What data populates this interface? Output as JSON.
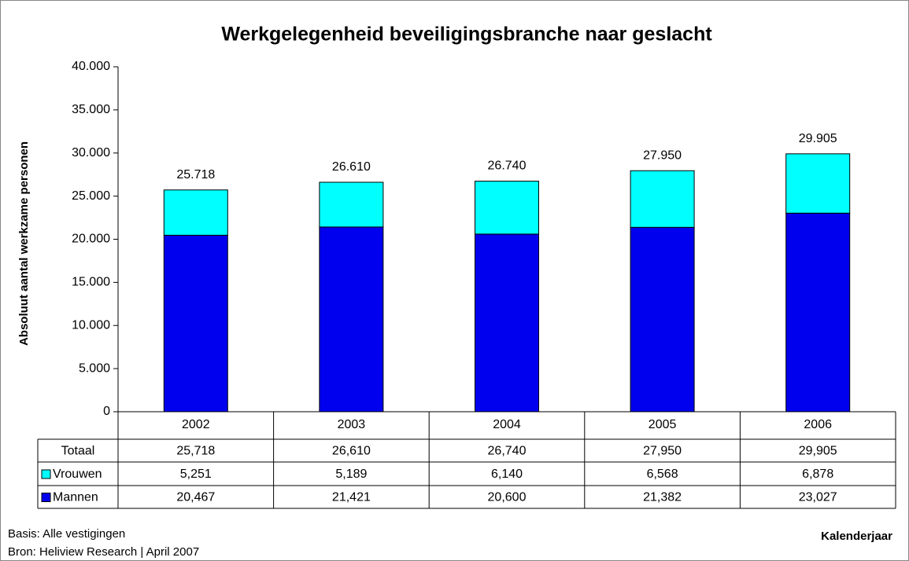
{
  "chart_data": {
    "type": "stacked_bar",
    "title": "Werkgelegenheid beveiligingsbranche naar geslacht",
    "y_label": "Absoluut aantal werkzame personen",
    "x_label": "Kalenderjaar",
    "notes": [
      "Basis: Alle vestigingen",
      "Bron: Heliview Research | April 2007"
    ],
    "categories": [
      "2002",
      "2003",
      "2004",
      "2005",
      "2006"
    ],
    "series": [
      {
        "name": "Mannen",
        "color": "#0000ee",
        "values": [
          20467,
          21421,
          20600,
          21382,
          23027
        ],
        "table_labels": [
          "20,467",
          "21,421",
          "20,600",
          "21,382",
          "23,027"
        ]
      },
      {
        "name": "Vrouwen",
        "color": "#00ffff",
        "values": [
          5251,
          5189,
          6140,
          6568,
          6878
        ],
        "table_labels": [
          "5,251",
          "5,189",
          "6,140",
          "6,568",
          "6,878"
        ]
      }
    ],
    "totals": {
      "name": "Totaal",
      "values": [
        25718,
        26610,
        26740,
        27950,
        29905
      ],
      "value_labels": [
        "25.718",
        "26.610",
        "26.740",
        "27.950",
        "29.905"
      ],
      "table_labels": [
        "25,718",
        "26,610",
        "26,740",
        "27,950",
        "29,905"
      ]
    },
    "ylim": [
      0,
      40000
    ],
    "yticks": [
      0,
      {
        "value": 5000,
        "label": "5.000"
      },
      {
        "value": 10000,
        "label": "10.000"
      },
      {
        "value": 15000,
        "label": "15.000"
      },
      {
        "value": 20000,
        "label": "20.000"
      },
      {
        "value": 25000,
        "label": "25.000"
      },
      {
        "value": 30000,
        "label": "30.000"
      },
      {
        "value": 35000,
        "label": "35.000"
      },
      {
        "value": 40000,
        "label": "40.000"
      }
    ]
  }
}
